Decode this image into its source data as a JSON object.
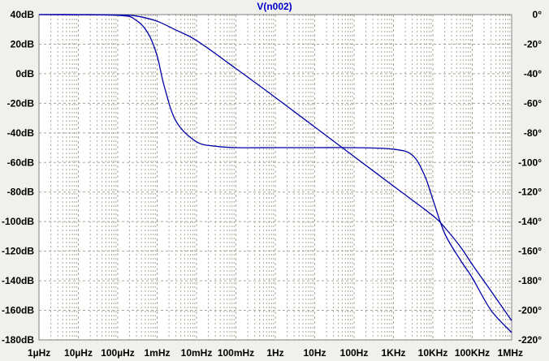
{
  "chart_data": {
    "type": "line",
    "title": "V(n002)",
    "x_scale": "log",
    "xlim": [
      1e-06,
      1000000.0
    ],
    "ylim_left": [
      -180,
      40
    ],
    "ylim_right": [
      -220,
      0
    ],
    "grid": true,
    "x_ticks": [
      {
        "value": 1e-06,
        "label": "1µHz"
      },
      {
        "value": 1e-05,
        "label": "10µHz"
      },
      {
        "value": 0.0001,
        "label": "100µHz"
      },
      {
        "value": 0.001,
        "label": "1mHz"
      },
      {
        "value": 0.01,
        "label": "10mHz"
      },
      {
        "value": 0.1,
        "label": "100mHz"
      },
      {
        "value": 1,
        "label": "1Hz"
      },
      {
        "value": 10,
        "label": "10Hz"
      },
      {
        "value": 100,
        "label": "100Hz"
      },
      {
        "value": 1000,
        "label": "1KHz"
      },
      {
        "value": 10000,
        "label": "10KHz"
      },
      {
        "value": 100000,
        "label": "100KHz"
      },
      {
        "value": 1000000,
        "label": "1MHz"
      }
    ],
    "y_ticks_left": [
      {
        "value": 40,
        "label": "40dB"
      },
      {
        "value": 20,
        "label": "20dB"
      },
      {
        "value": 0,
        "label": "0dB"
      },
      {
        "value": -20,
        "label": "-20dB"
      },
      {
        "value": -40,
        "label": "-40dB"
      },
      {
        "value": -60,
        "label": "-60dB"
      },
      {
        "value": -80,
        "label": "-80dB"
      },
      {
        "value": -100,
        "label": "-100dB"
      },
      {
        "value": -120,
        "label": "-120dB"
      },
      {
        "value": -140,
        "label": "-140dB"
      },
      {
        "value": -160,
        "label": "-160dB"
      },
      {
        "value": -180,
        "label": "-180dB"
      }
    ],
    "y_ticks_right": [
      {
        "value": 0,
        "label": "0°"
      },
      {
        "value": -20,
        "label": "-20°"
      },
      {
        "value": -40,
        "label": "-40°"
      },
      {
        "value": -60,
        "label": "-60°"
      },
      {
        "value": -80,
        "label": "-80°"
      },
      {
        "value": -100,
        "label": "-100°"
      },
      {
        "value": -120,
        "label": "-120°"
      },
      {
        "value": -140,
        "label": "-140°"
      },
      {
        "value": -160,
        "label": "-160°"
      },
      {
        "value": -180,
        "label": "-180°"
      },
      {
        "value": -200,
        "label": "-200°"
      },
      {
        "value": -220,
        "label": "-220°"
      }
    ],
    "series": [
      {
        "axis": "left",
        "points": [
          [
            1e-06,
            40
          ],
          [
            1e-05,
            40
          ],
          [
            0.0001,
            39.8
          ],
          [
            0.0003,
            39
          ],
          [
            0.001,
            35.5
          ],
          [
            0.003,
            29.5
          ],
          [
            0.01,
            22.5
          ],
          [
            0.1,
            3.5
          ],
          [
            1,
            -16
          ],
          [
            10,
            -36
          ],
          [
            100,
            -56
          ],
          [
            1000,
            -76
          ],
          [
            10000,
            -96
          ],
          [
            20000,
            -104
          ],
          [
            50000,
            -117
          ],
          [
            100000,
            -129
          ],
          [
            300000,
            -147
          ],
          [
            1000000,
            -167
          ]
        ]
      },
      {
        "axis": "right",
        "points": [
          [
            1e-06,
            0
          ],
          [
            0.0001,
            -0.5
          ],
          [
            0.0003,
            -4
          ],
          [
            0.0006,
            -13
          ],
          [
            0.001,
            -28
          ],
          [
            0.0015,
            -48
          ],
          [
            0.003,
            -72
          ],
          [
            0.01,
            -86
          ],
          [
            0.03,
            -89
          ],
          [
            0.1,
            -90
          ],
          [
            1,
            -90
          ],
          [
            10,
            -90
          ],
          [
            100,
            -90
          ],
          [
            1000,
            -91
          ],
          [
            3000,
            -95
          ],
          [
            6000,
            -108
          ],
          [
            10000,
            -125
          ],
          [
            20000,
            -148
          ],
          [
            50000,
            -166
          ],
          [
            100000,
            -178
          ],
          [
            300000,
            -200
          ],
          [
            1000000,
            -215
          ]
        ]
      }
    ],
    "colors": {
      "background": "#f0f0ec",
      "plot_background": "#ffffff",
      "grid": "#a8a898",
      "line": "#0000aa",
      "title": "#0000cc"
    }
  }
}
